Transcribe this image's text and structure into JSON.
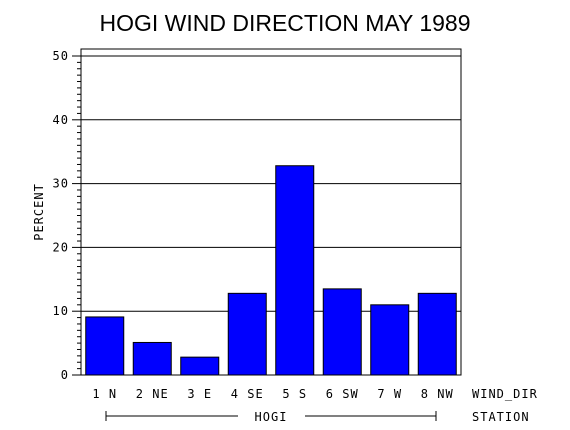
{
  "chart_data": {
    "type": "bar",
    "title": "HOGI WIND DIRECTION MAY 1989",
    "ylabel": "PERCENT",
    "xlabel": "WIND_DIR",
    "group_axis_label": "STATION",
    "group_label": "HOGI",
    "categories": [
      "1 N",
      "2 NE",
      "3 E",
      "4 SE",
      "5 S",
      "6 SW",
      "7 W",
      "8 NW"
    ],
    "values": [
      9.1,
      5.1,
      2.8,
      12.8,
      32.8,
      13.5,
      11.0,
      12.8
    ],
    "ylim": [
      0,
      50
    ],
    "yticks": [
      "0",
      "10",
      "20",
      "30",
      "40",
      "50"
    ],
    "grid": true,
    "bar_color": "#0000ff"
  }
}
